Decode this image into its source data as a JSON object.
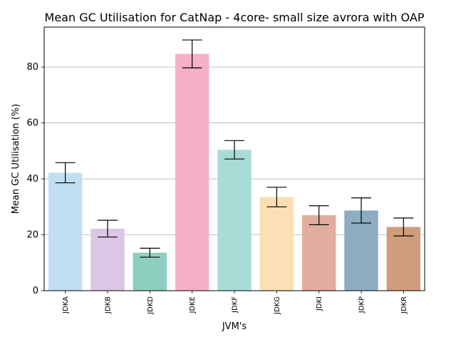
{
  "chart_data": {
    "type": "bar",
    "title": "Mean GC Utilisation for CatNap - 4core- small size avrora with OAP",
    "xlabel": "JVM's",
    "ylabel": "Mean GC Utilisation (%)",
    "ylim": [
      0,
      94.3
    ],
    "yticks": [
      0,
      20,
      40,
      60,
      80
    ],
    "grid": "y",
    "categories": [
      "JDKA",
      "JDKB",
      "JDKD",
      "JDKE",
      "JDKF",
      "JDKG",
      "JDKI",
      "JDKP",
      "JDKR"
    ],
    "values": [
      42.2,
      22.2,
      13.6,
      84.7,
      50.4,
      33.5,
      27.0,
      28.7,
      22.8
    ],
    "error": [
      3.6,
      3.0,
      1.6,
      5.0,
      3.3,
      3.5,
      3.4,
      4.5,
      3.2
    ],
    "colors": [
      "#c1dff2",
      "#dcc6e6",
      "#8ed0c0",
      "#f6b0c8",
      "#a8dcd6",
      "#fae0b4",
      "#e2aca1",
      "#8eadc2",
      "#cf9d7b"
    ]
  }
}
